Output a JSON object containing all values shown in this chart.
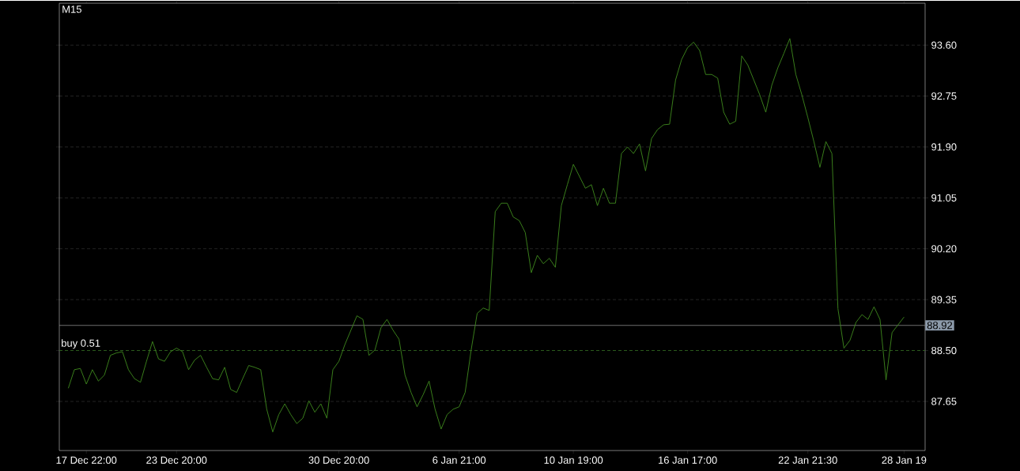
{
  "chart_data": {
    "type": "line",
    "title": "M15",
    "categories": [
      null,
      null,
      null,
      "17 Dec 22:00",
      null,
      null,
      null,
      null,
      null,
      null,
      null,
      null,
      null,
      null,
      null,
      null,
      null,
      null,
      "23 Dec 20:00",
      null,
      null,
      null,
      null,
      null,
      null,
      null,
      null,
      null,
      null,
      null,
      null,
      null,
      null,
      null,
      null,
      null,
      null,
      null,
      null,
      null,
      null,
      null,
      null,
      null,
      null,
      "30 Dec 20:00",
      null,
      null,
      null,
      null,
      null,
      null,
      null,
      null,
      null,
      null,
      null,
      null,
      null,
      null,
      null,
      null,
      null,
      null,
      null,
      "6 Jan 21:00",
      null,
      null,
      null,
      null,
      null,
      null,
      null,
      null,
      null,
      null,
      null,
      null,
      null,
      null,
      null,
      null,
      null,
      null,
      "10 Jan 19:00",
      null,
      null,
      null,
      null,
      null,
      null,
      null,
      null,
      null,
      null,
      null,
      null,
      null,
      null,
      null,
      null,
      null,
      null,
      "16 Jan 17:00",
      null,
      null,
      null,
      null,
      null,
      null,
      null,
      null,
      null,
      null,
      null,
      null,
      null,
      null,
      null,
      null,
      null,
      null,
      null,
      "22 Jan 21:30",
      null,
      null,
      null,
      null,
      null,
      null,
      null,
      null,
      null,
      null,
      null,
      null,
      null,
      null,
      null,
      "28 Jan 19"
    ],
    "series": [
      {
        "color": "#3f8a1e",
        "values": [
          87.87,
          88.18,
          88.2,
          87.94,
          88.18,
          87.99,
          88.09,
          88.42,
          88.46,
          88.48,
          88.18,
          88.03,
          87.97,
          88.32,
          88.65,
          88.36,
          88.32,
          88.48,
          88.54,
          88.48,
          88.18,
          88.34,
          88.42,
          88.22,
          88.03,
          88.01,
          88.22,
          87.85,
          87.8,
          88.03,
          88.25,
          88.22,
          88.18,
          87.52,
          87.14,
          87.43,
          87.61,
          87.43,
          87.28,
          87.37,
          87.66,
          87.47,
          87.61,
          87.37,
          88.18,
          88.32,
          88.6,
          88.84,
          89.08,
          89.02,
          88.42,
          88.51,
          88.88,
          89.02,
          88.84,
          88.69,
          88.09,
          87.8,
          87.56,
          87.76,
          87.99,
          87.52,
          87.19,
          87.43,
          87.52,
          87.56,
          87.8,
          88.51,
          89.12,
          89.21,
          89.17,
          90.82,
          90.96,
          90.96,
          90.73,
          90.67,
          90.47,
          89.8,
          90.09,
          89.95,
          90.04,
          89.89,
          90.92,
          91.27,
          91.61,
          91.41,
          91.21,
          91.27,
          90.92,
          91.21,
          90.96,
          90.96,
          91.79,
          91.9,
          91.79,
          91.95,
          91.5,
          92.04,
          92.19,
          92.27,
          92.28,
          93.02,
          93.36,
          93.56,
          93.65,
          93.51,
          93.11,
          93.11,
          93.05,
          92.48,
          92.28,
          92.33,
          93.42,
          93.27,
          93.02,
          92.77,
          92.48,
          92.93,
          93.22,
          93.46,
          93.71,
          93.11,
          92.77,
          92.39,
          91.99,
          91.56,
          91.99,
          91.79,
          89.2,
          88.54,
          88.67,
          88.97,
          89.1,
          89.02,
          89.23,
          89.02,
          88.01,
          88.8,
          88.93,
          89.06
        ]
      }
    ],
    "ylim": [
      86.83,
      94.3
    ],
    "yticks": [
      {
        "value": 87.65,
        "label": "87.65"
      },
      {
        "value": 88.5,
        "label": "88.50"
      },
      {
        "value": 89.35,
        "label": "89.35"
      },
      {
        "value": 90.2,
        "label": "90.20"
      },
      {
        "value": 91.05,
        "label": "91.05"
      },
      {
        "value": 91.9,
        "label": "91.90"
      },
      {
        "value": 92.75,
        "label": "92.75"
      },
      {
        "value": 93.6,
        "label": "93.60"
      }
    ],
    "grid": "y",
    "ref_lines": [
      {
        "axis": "y",
        "value": 88.92,
        "label": "88.92",
        "color": "#8c8c8c",
        "line_style": "solid"
      },
      {
        "axis": "y",
        "value": 88.5,
        "label": "buy 0.51",
        "color": "#2f6a1a",
        "line_style": "dashed"
      }
    ]
  }
}
